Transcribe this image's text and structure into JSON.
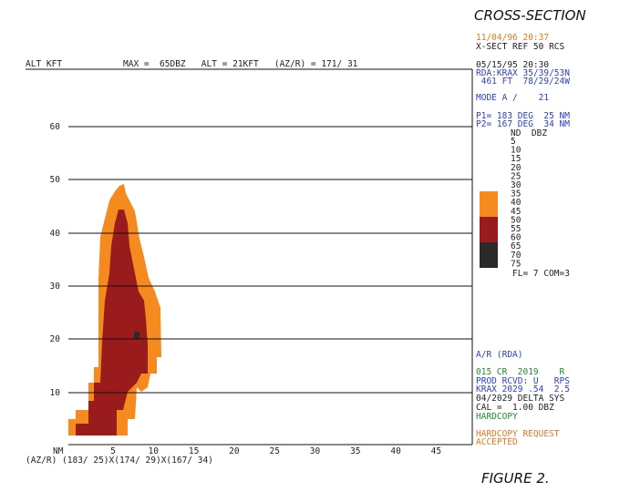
{
  "header": {
    "alt_label": "ALT KFT",
    "info": "MAX =  65DBZ   ALT = 21KFT   (AZ/R) = 171/ 31"
  },
  "y_axis": {
    "labels": [
      "60",
      "50",
      "40",
      "30",
      "20",
      "10"
    ]
  },
  "x_axis": {
    "unit": "NM",
    "labels": [
      "5",
      "10",
      "15",
      "20",
      "25",
      "30",
      "35",
      "40",
      "45"
    ],
    "azr": "(AZ/R) (183/ 25)X(174/ 29)X(167/ 34)"
  },
  "panel": {
    "title": "CROSS-SECTION",
    "time": "11/04/96 20:37",
    "product": "X-SECT REF 50 RCS",
    "volume_time": "05/15/95 20:30",
    "rda": "RDA:KRAX 35/39/53N",
    "elev": " 461 FT  78/29/24W",
    "mode": "MODE A /    21",
    "p1": "P1= 183 DEG  25 NM",
    "p2": "P2= 167 DEG  34 NM",
    "legend_head": "ND  DBZ",
    "dbz": [
      "5",
      "10",
      "15",
      "20",
      "25",
      "30",
      "35",
      "40",
      "45",
      "50",
      "55",
      "60",
      "65",
      "70",
      "75"
    ],
    "fl": "FL= 7 COM=3",
    "ar": "A/R (RDA)",
    "cr": "015 CR  2019    R",
    "prod": "PROD RCVD: U   RPS",
    "krax": "KRAX 2029 .54  2.5",
    "delta": "04/2029 DELTA SYS",
    "cal": "CAL =  1.00 DBZ",
    "hardcopy": "HARDCOPY",
    "request": "HARDCOPY REQUEST",
    "accepted": "ACCEPTED",
    "figure": "FIGURE 2."
  }
}
